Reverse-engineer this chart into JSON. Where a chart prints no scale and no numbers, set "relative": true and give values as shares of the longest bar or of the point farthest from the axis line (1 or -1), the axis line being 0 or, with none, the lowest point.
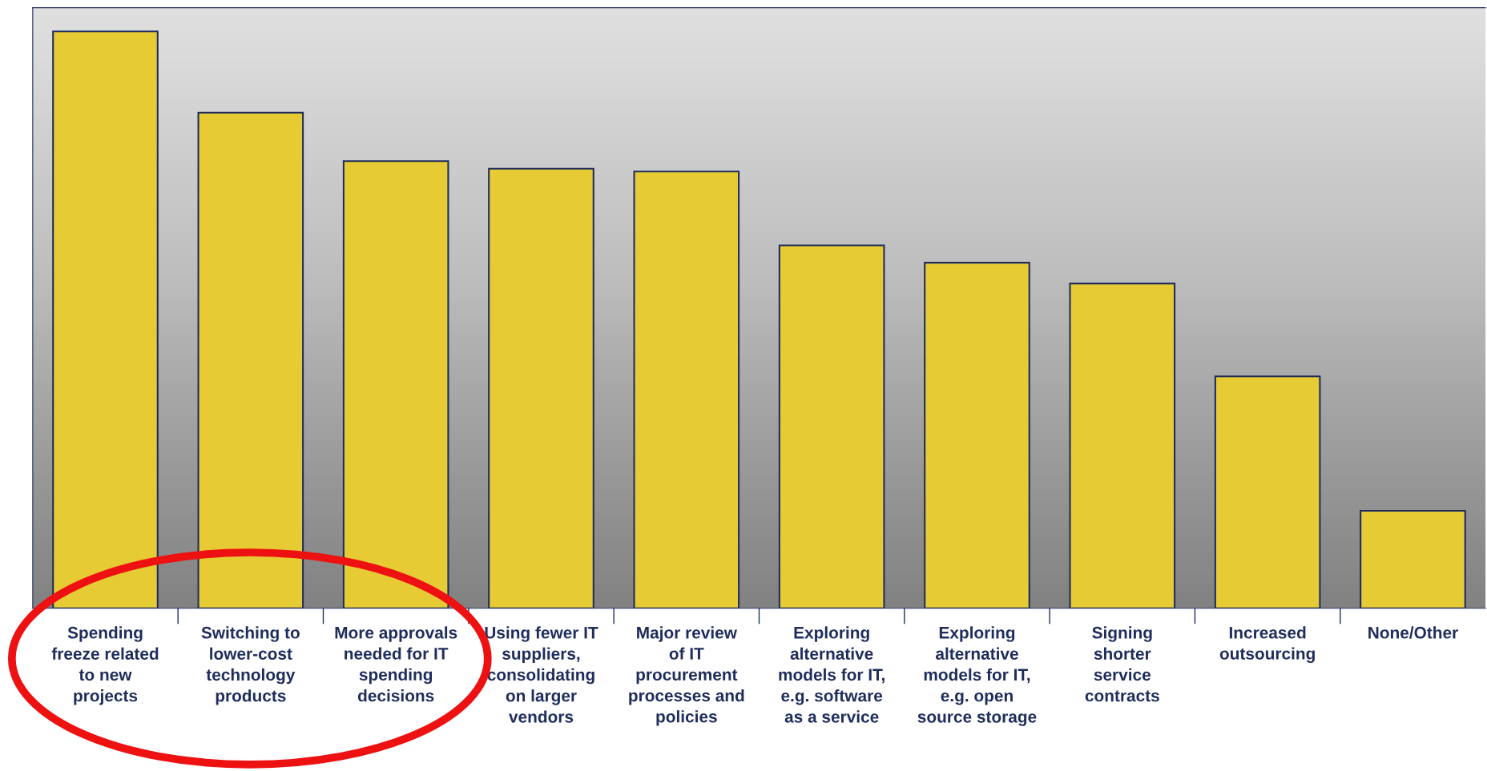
{
  "chart_data": {
    "type": "bar",
    "relative": true,
    "color": "#e6cb35",
    "categories": [
      "Spending freeze related to new projects",
      "Switching to lower-cost technology products",
      "More approvals needed for IT spending decisions",
      "Using fewer IT suppliers, consolidating on larger vendors",
      "Major review of IT procurement processes and policies",
      "Exploring alternative models for IT, e.g. software as a service",
      "Exploring alternative models for IT, e.g. open source storage",
      "Signing shorter service contracts",
      "Increased outsourcing",
      "None/Other"
    ],
    "values": [
      1,
      0.859,
      0.775,
      0.762,
      0.757,
      0.629,
      0.599,
      0.563,
      0.402,
      0.169
    ]
  }
}
